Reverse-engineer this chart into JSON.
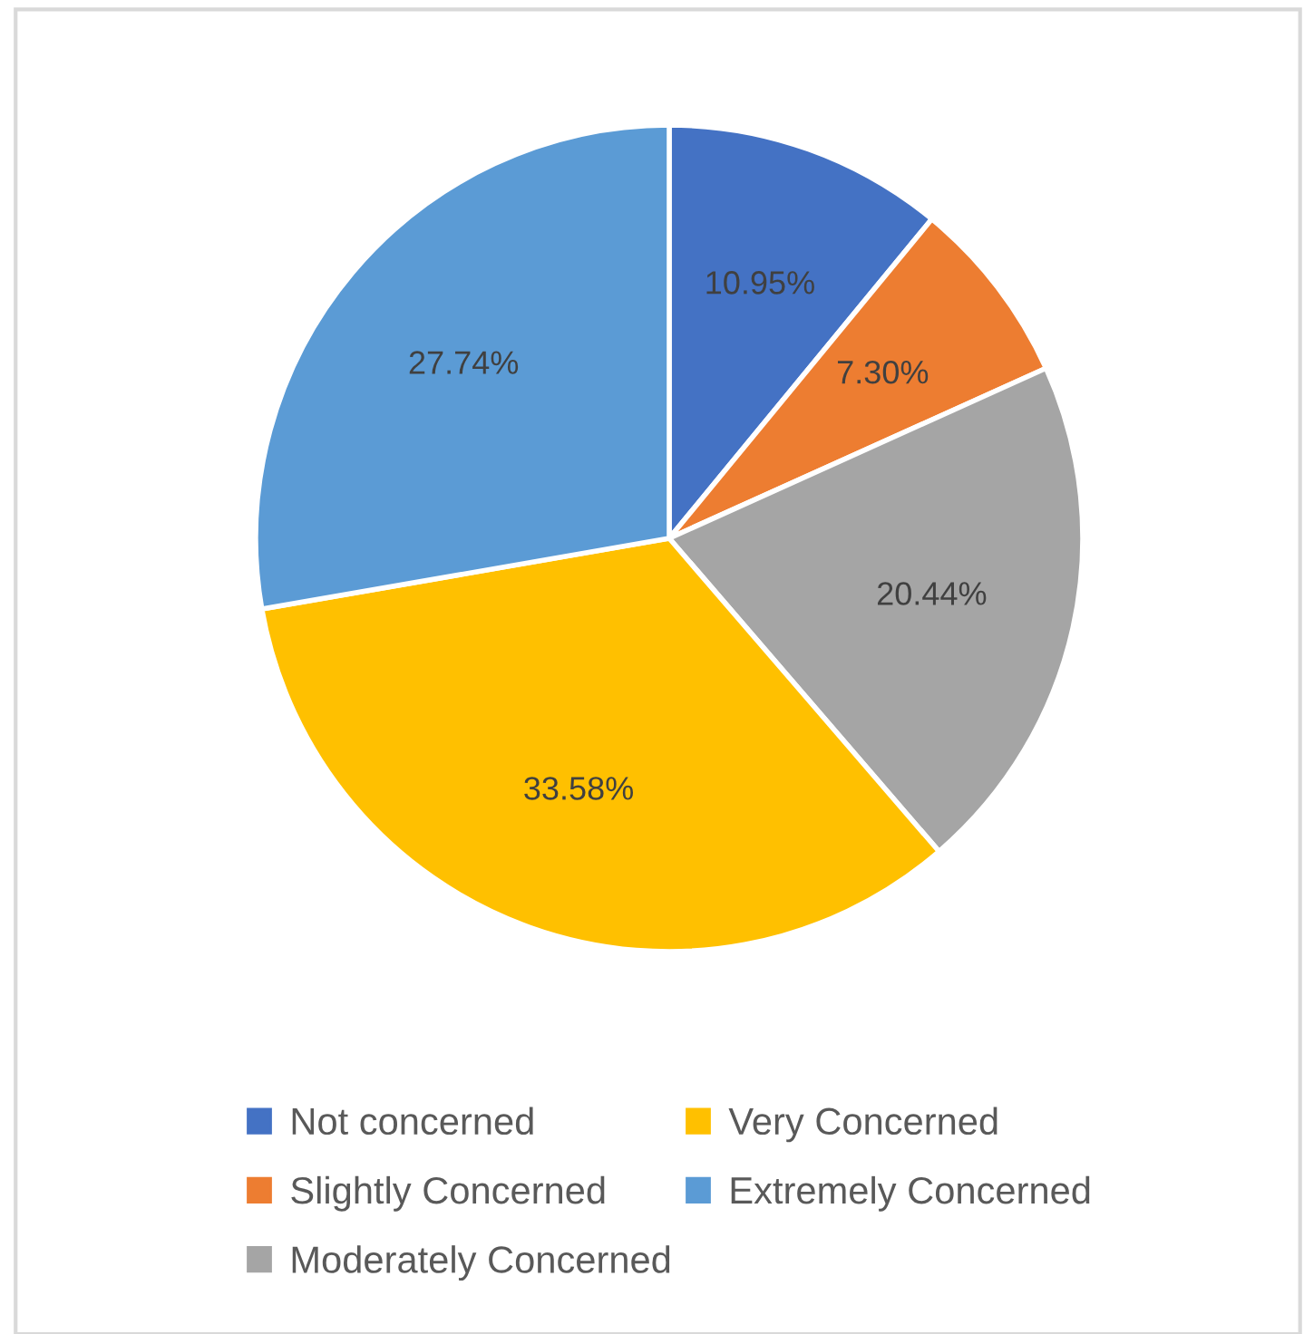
{
  "chart_data": {
    "type": "pie",
    "categories": [
      "Not concerned",
      "Slightly Concerned",
      "Moderately Concerned",
      "Very Concerned",
      "Extremely Concerned"
    ],
    "values": [
      10.95,
      7.3,
      20.44,
      33.58,
      27.74
    ],
    "value_labels": [
      "10.95%",
      "7.30%",
      "20.44%",
      "33.58%",
      "27.74%"
    ],
    "colors": [
      "#4472c4",
      "#ed7d31",
      "#a5a5a5",
      "#ffc000",
      "#5b9bd5"
    ],
    "legend": "bottom"
  }
}
